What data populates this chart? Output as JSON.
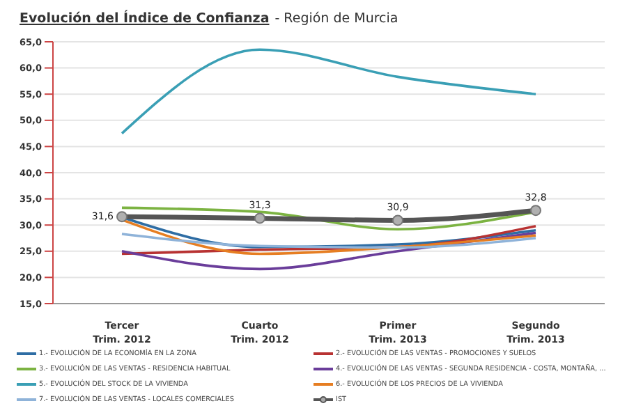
{
  "chart_data": {
    "type": "line",
    "title": "Evolución del Índice de Confianza",
    "subtitle": "- Región de Murcia",
    "categories": [
      "Tercer Trim. 2012",
      "Cuarto Trim. 2012",
      "Primer Trim. 2013",
      "Segundo Trim. 2013"
    ],
    "series": [
      {
        "name": "1.- EVOLUCIÓN DE LA ECONOMÍA EN LA ZONA",
        "color": "#2e6da4",
        "values": [
          31.5,
          25.8,
          26.3,
          29
        ]
      },
      {
        "name": "2.- EVOLUCIÓN DE LAS VENTAS - PROMOCIONES Y SUELOS",
        "color": "#b83232",
        "values": [
          24.5,
          25.3,
          25.8,
          29.8
        ]
      },
      {
        "name": "3.- EVOLUCIÓN DE LAS VENTAS - RESIDENCIA HABITUAL",
        "color": "#7cb342",
        "values": [
          33.3,
          32.5,
          29.2,
          32.5
        ]
      },
      {
        "name": "4.- EVOLUCIÓN DE LAS VENTAS - SEGUNDA RESIDENCIA - COSTA, MONTAÑA, ...",
        "color": "#6a3d9a",
        "values": [
          25,
          21.6,
          25,
          28.5
        ]
      },
      {
        "name": "5.- EVOLUCIÓN DEL STOCK DE LA VIVIENDA",
        "color": "#3a9fb5",
        "values": [
          47.5,
          63.5,
          58.3,
          55
        ]
      },
      {
        "name": "6.- EVOLUCIÓN DE LOS PRECIOS DE LA VIVIENDA",
        "color": "#e67e22",
        "values": [
          31,
          24.5,
          25.8,
          28
        ]
      },
      {
        "name": "7.- EVOLUCIÓN DE LAS VENTAS - LOCALES COMERCIALES",
        "color": "#8fb3d9",
        "values": [
          28.3,
          26,
          25.7,
          27.5
        ]
      },
      {
        "name": "IST",
        "color": "#555555",
        "values": [
          31.6,
          31.3,
          30.9,
          32.8
        ],
        "marker": "circle",
        "value_labels": [
          "31,6",
          "31,3",
          "30,9",
          "32,8"
        ]
      }
    ],
    "ylim": [
      15,
      65
    ],
    "yticks": [
      {
        "value": 15,
        "label": "15,0"
      },
      {
        "value": 20,
        "label": "20,0"
      },
      {
        "value": 25,
        "label": "25,0"
      },
      {
        "value": 30,
        "label": "30,0"
      },
      {
        "value": 35,
        "label": "35,0"
      },
      {
        "value": 40,
        "label": "40,0"
      },
      {
        "value": 45,
        "label": "45,0"
      },
      {
        "value": 50,
        "label": "50,0"
      },
      {
        "value": 55,
        "label": "55,0"
      },
      {
        "value": 60,
        "label": "60,0"
      },
      {
        "value": 65,
        "label": "65,0"
      }
    ],
    "grid": "y",
    "legend": "bottom",
    "line_style": "solid"
  }
}
